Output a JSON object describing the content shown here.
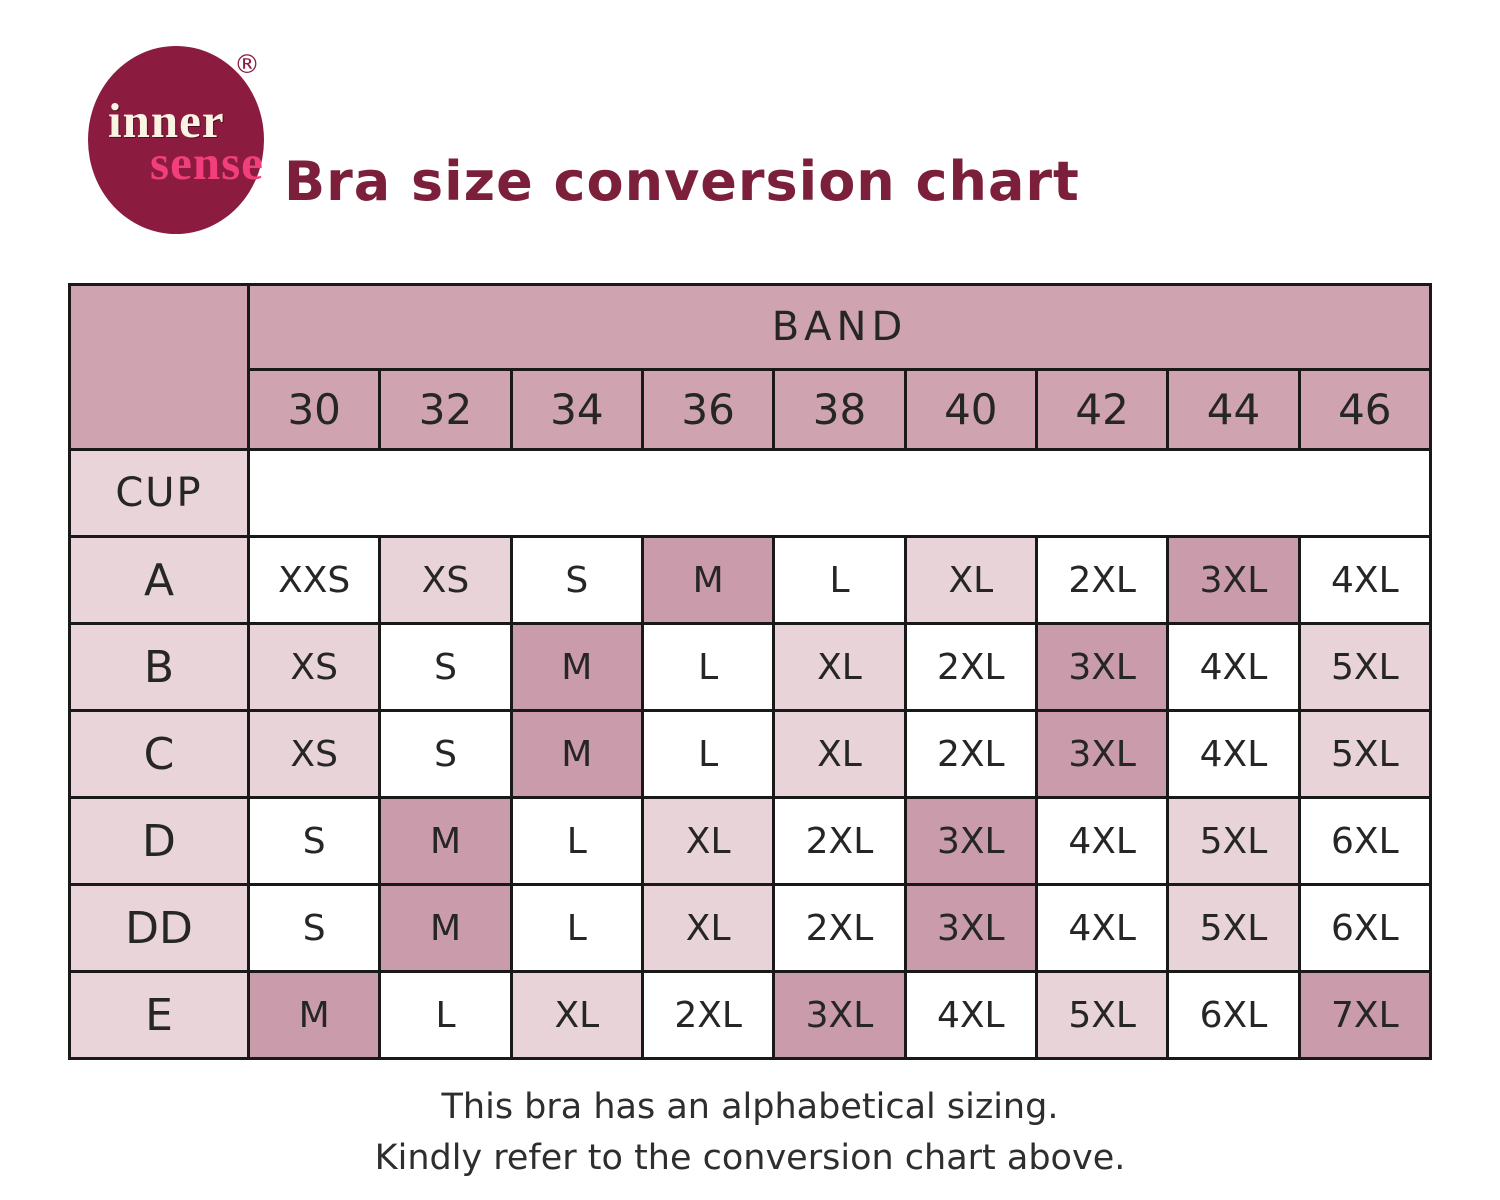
{
  "logo": {
    "line1": "inner",
    "line2": "sense",
    "registered": "®"
  },
  "title": "Bra size conversion chart",
  "colors": {
    "logo_circle": "#8b1c40",
    "logo_sense_pink": "#f23e7d",
    "title_maroon": "#7b1f3b",
    "header_mauve": "#cfa3b0",
    "highlight_mauve": "#c99bab",
    "light_pink": "#e8d3d9",
    "border_black": "#191919"
  },
  "table": {
    "band_header": "BAND",
    "cup_header": "CUP",
    "bands": [
      "30",
      "32",
      "34",
      "36",
      "38",
      "40",
      "42",
      "44",
      "46"
    ],
    "rows": [
      {
        "cup": "A",
        "cells": [
          {
            "label": "XXS",
            "shade": "white"
          },
          {
            "label": "XS",
            "shade": "pink"
          },
          {
            "label": "S",
            "shade": "white"
          },
          {
            "label": "M",
            "shade": "mauve"
          },
          {
            "label": "L",
            "shade": "white"
          },
          {
            "label": "XL",
            "shade": "pink"
          },
          {
            "label": "2XL",
            "shade": "white"
          },
          {
            "label": "3XL",
            "shade": "mauve"
          },
          {
            "label": "4XL",
            "shade": "white"
          }
        ]
      },
      {
        "cup": "B",
        "cells": [
          {
            "label": "XS",
            "shade": "pink"
          },
          {
            "label": "S",
            "shade": "white"
          },
          {
            "label": "M",
            "shade": "mauve"
          },
          {
            "label": "L",
            "shade": "white"
          },
          {
            "label": "XL",
            "shade": "pink"
          },
          {
            "label": "2XL",
            "shade": "white"
          },
          {
            "label": "3XL",
            "shade": "mauve"
          },
          {
            "label": "4XL",
            "shade": "white"
          },
          {
            "label": "5XL",
            "shade": "pink"
          }
        ]
      },
      {
        "cup": "C",
        "cells": [
          {
            "label": "XS",
            "shade": "pink"
          },
          {
            "label": "S",
            "shade": "white"
          },
          {
            "label": "M",
            "shade": "mauve"
          },
          {
            "label": "L",
            "shade": "white"
          },
          {
            "label": "XL",
            "shade": "pink"
          },
          {
            "label": "2XL",
            "shade": "white"
          },
          {
            "label": "3XL",
            "shade": "mauve"
          },
          {
            "label": "4XL",
            "shade": "white"
          },
          {
            "label": "5XL",
            "shade": "pink"
          }
        ]
      },
      {
        "cup": "D",
        "cells": [
          {
            "label": "S",
            "shade": "white"
          },
          {
            "label": "M",
            "shade": "mauve"
          },
          {
            "label": "L",
            "shade": "white"
          },
          {
            "label": "XL",
            "shade": "pink"
          },
          {
            "label": "2XL",
            "shade": "white"
          },
          {
            "label": "3XL",
            "shade": "mauve"
          },
          {
            "label": "4XL",
            "shade": "white"
          },
          {
            "label": "5XL",
            "shade": "pink"
          },
          {
            "label": "6XL",
            "shade": "white"
          }
        ]
      },
      {
        "cup": "DD",
        "cells": [
          {
            "label": "S",
            "shade": "white"
          },
          {
            "label": "M",
            "shade": "mauve"
          },
          {
            "label": "L",
            "shade": "white"
          },
          {
            "label": "XL",
            "shade": "pink"
          },
          {
            "label": "2XL",
            "shade": "white"
          },
          {
            "label": "3XL",
            "shade": "mauve"
          },
          {
            "label": "4XL",
            "shade": "white"
          },
          {
            "label": "5XL",
            "shade": "pink"
          },
          {
            "label": "6XL",
            "shade": "white"
          }
        ]
      },
      {
        "cup": "E",
        "cells": [
          {
            "label": "M",
            "shade": "mauve"
          },
          {
            "label": "L",
            "shade": "white"
          },
          {
            "label": "XL",
            "shade": "pink"
          },
          {
            "label": "2XL",
            "shade": "white"
          },
          {
            "label": "3XL",
            "shade": "mauve"
          },
          {
            "label": "4XL",
            "shade": "white"
          },
          {
            "label": "5XL",
            "shade": "pink"
          },
          {
            "label": "6XL",
            "shade": "white"
          },
          {
            "label": "7XL",
            "shade": "mauve"
          }
        ]
      }
    ]
  },
  "footer": {
    "line1": "This bra has an alphabetical sizing.",
    "line2": "Kindly refer to the conversion chart above."
  },
  "chart_data": {
    "type": "table",
    "title": "Bra size conversion chart",
    "columns_label": "BAND",
    "rows_label": "CUP",
    "columns": [
      "30",
      "32",
      "34",
      "36",
      "38",
      "40",
      "42",
      "44",
      "46"
    ],
    "rows": [
      "A",
      "B",
      "C",
      "D",
      "DD",
      "E"
    ],
    "values": [
      [
        "XXS",
        "XS",
        "S",
        "M",
        "L",
        "XL",
        "2XL",
        "3XL",
        "4XL"
      ],
      [
        "XS",
        "S",
        "M",
        "L",
        "XL",
        "2XL",
        "3XL",
        "4XL",
        "5XL"
      ],
      [
        "XS",
        "S",
        "M",
        "L",
        "XL",
        "2XL",
        "3XL",
        "4XL",
        "5XL"
      ],
      [
        "S",
        "M",
        "L",
        "XL",
        "2XL",
        "3XL",
        "4XL",
        "5XL",
        "6XL"
      ],
      [
        "S",
        "M",
        "L",
        "XL",
        "2XL",
        "3XL",
        "4XL",
        "5XL",
        "6XL"
      ],
      [
        "M",
        "L",
        "XL",
        "2XL",
        "3XL",
        "4XL",
        "5XL",
        "6XL",
        "7XL"
      ]
    ]
  }
}
